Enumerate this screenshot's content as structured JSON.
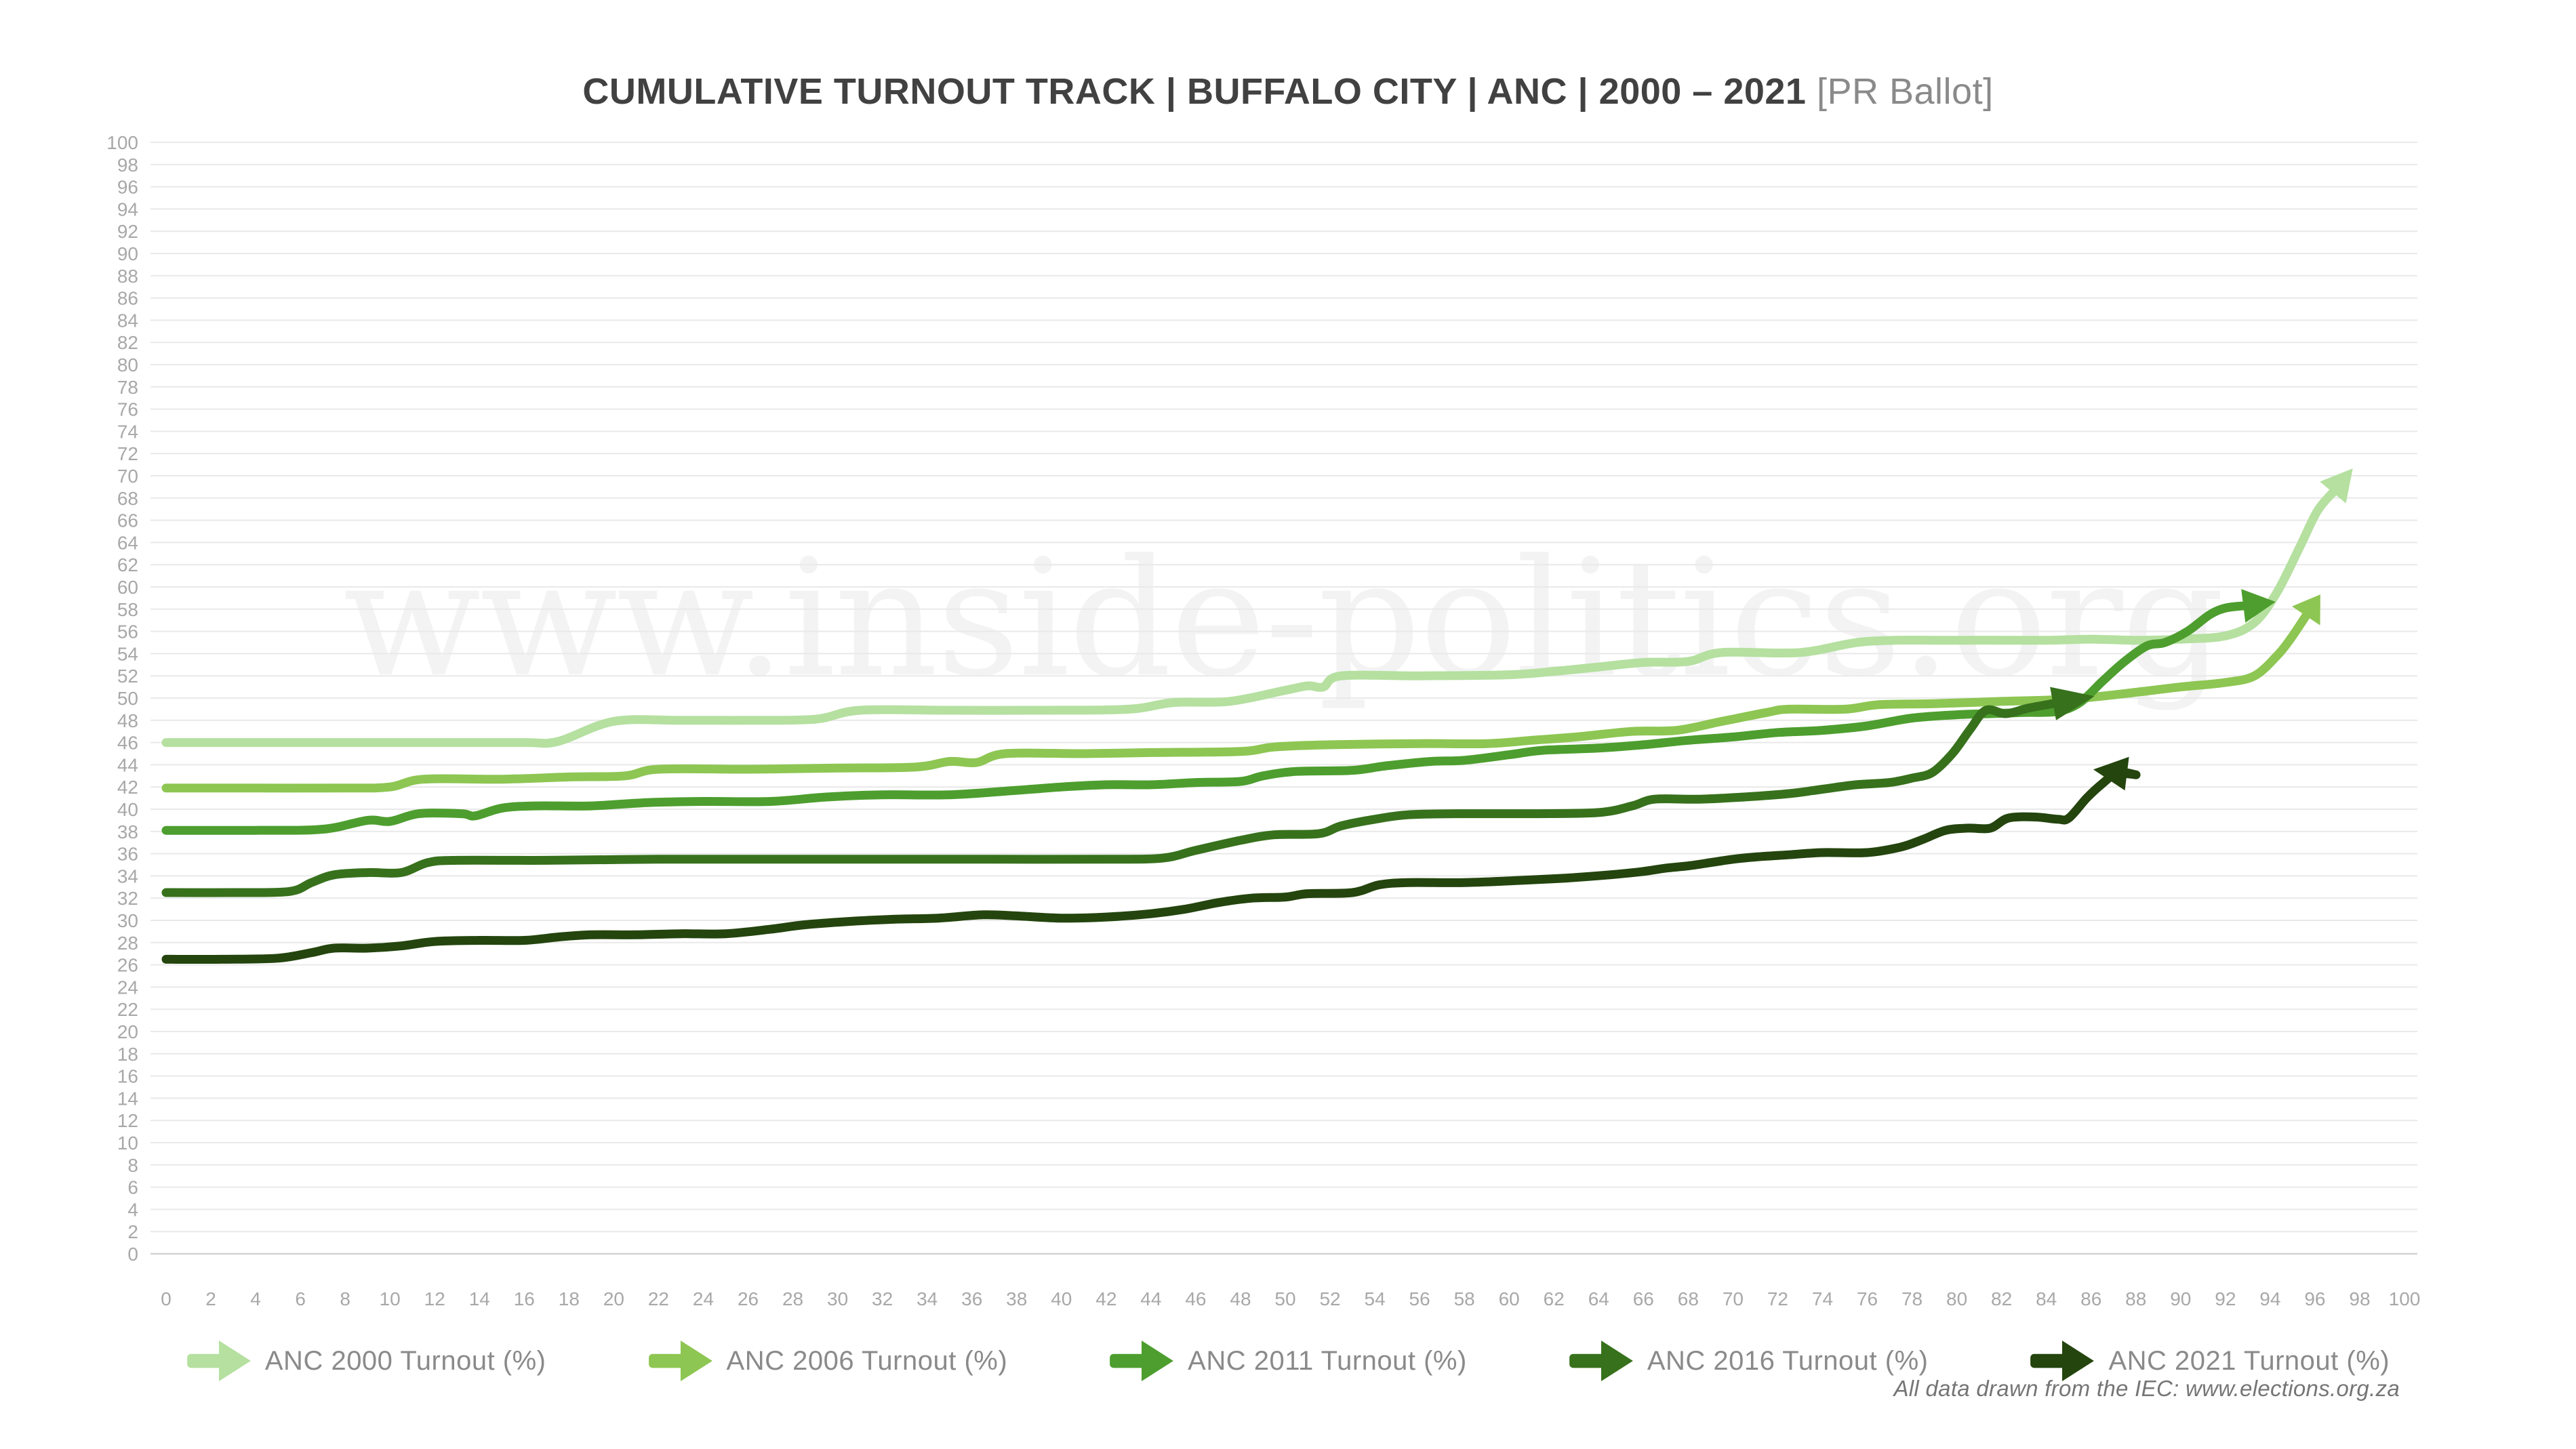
{
  "title": {
    "main": "CUMULATIVE TURNOUT TRACK | BUFFALO CITY | ANC | 2000 – 2021",
    "suffix": " [PR Ballot]"
  },
  "watermark": "www.inside-politics.org",
  "footer": "All data drawn from the IEC: www.elections.org.za",
  "legend": {
    "items": [
      {
        "label": "ANC 2000 Turnout (%)",
        "color": "#b5e0a0"
      },
      {
        "label": "ANC 2006 Turnout (%)",
        "color": "#8dc652"
      },
      {
        "label": "ANC 2011 Turnout (%)",
        "color": "#4d9e2e"
      },
      {
        "label": "ANC 2016 Turnout (%)",
        "color": "#37711c"
      },
      {
        "label": "ANC 2021 Turnout (%)",
        "color": "#24450e"
      }
    ]
  },
  "chart_data": {
    "type": "line",
    "title": "CUMULATIVE TURNOUT TRACK | BUFFALO CITY | ANC | 2000 – 2021 [PR Ballot]",
    "xlabel": "",
    "ylabel": "",
    "xlim": [
      0,
      100
    ],
    "ylim": [
      0,
      100
    ],
    "x_tick_step": 2,
    "y_tick_step": 2,
    "grid": "horizontal",
    "legend_position": "bottom",
    "axis_label_color": "#a8a8a8",
    "gridline_color": "#e9e9e9",
    "zeroline_color": "#d4d4d4",
    "watermark_color": "#f3f3f3",
    "series": [
      {
        "name": "ANC 2000 Turnout (%)",
        "color": "#b5e0a0",
        "arrow_len": 46,
        "points": [
          [
            0,
            46
          ],
          [
            4,
            46
          ],
          [
            8,
            46
          ],
          [
            12,
            46
          ],
          [
            16,
            46
          ],
          [
            17.5,
            46.1
          ],
          [
            20,
            47.9
          ],
          [
            23,
            48
          ],
          [
            26,
            48
          ],
          [
            29,
            48.1
          ],
          [
            31,
            48.9
          ],
          [
            35,
            48.9
          ],
          [
            39,
            48.9
          ],
          [
            43,
            49
          ],
          [
            45,
            49.6
          ],
          [
            47.5,
            49.7
          ],
          [
            50,
            50.7
          ],
          [
            51,
            51.1
          ],
          [
            51.7,
            51.0
          ],
          [
            52.5,
            52
          ],
          [
            56,
            52
          ],
          [
            60,
            52.1
          ],
          [
            62,
            52.4
          ],
          [
            64,
            52.8
          ],
          [
            66,
            53.2
          ],
          [
            68,
            53.3
          ],
          [
            69.5,
            54.1
          ],
          [
            73,
            54.1
          ],
          [
            76,
            55.1
          ],
          [
            80,
            55.2
          ],
          [
            84,
            55.2
          ],
          [
            86,
            55.3
          ],
          [
            88,
            55.2
          ],
          [
            90,
            55.3
          ],
          [
            92,
            55.6
          ],
          [
            93.3,
            56.8
          ],
          [
            94.3,
            59.5
          ],
          [
            95.3,
            63.5
          ],
          [
            96.1,
            66.8
          ],
          [
            96.8,
            68.5
          ]
        ]
      },
      {
        "name": "ANC 2006 Turnout (%)",
        "color": "#8dc652",
        "arrow_len": 38,
        "points": [
          [
            0,
            41.9
          ],
          [
            4,
            41.9
          ],
          [
            8,
            41.9
          ],
          [
            10,
            42
          ],
          [
            11.5,
            42.7
          ],
          [
            15,
            42.7
          ],
          [
            18,
            42.9
          ],
          [
            20.5,
            43
          ],
          [
            22,
            43.6
          ],
          [
            26,
            43.6
          ],
          [
            30,
            43.7
          ],
          [
            33.5,
            43.8
          ],
          [
            35,
            44.3
          ],
          [
            36.2,
            44.2
          ],
          [
            37.5,
            45
          ],
          [
            41,
            45
          ],
          [
            44,
            45.1
          ],
          [
            48,
            45.2
          ],
          [
            49.5,
            45.6
          ],
          [
            52,
            45.8
          ],
          [
            56,
            45.9
          ],
          [
            59,
            45.9
          ],
          [
            61,
            46.2
          ],
          [
            63,
            46.5
          ],
          [
            65.5,
            47
          ],
          [
            67.5,
            47.1
          ],
          [
            69.5,
            47.9
          ],
          [
            71.5,
            48.7
          ],
          [
            72.5,
            49
          ],
          [
            75,
            49
          ],
          [
            76.5,
            49.4
          ],
          [
            79,
            49.5
          ],
          [
            82,
            49.7
          ],
          [
            85,
            49.9
          ],
          [
            87.5,
            50.4
          ],
          [
            90,
            51
          ],
          [
            92,
            51.4
          ],
          [
            93.3,
            52
          ],
          [
            94.3,
            53.8
          ],
          [
            94.9,
            55.3
          ],
          [
            95.6,
            57.4
          ]
        ]
      },
      {
        "name": "ANC 2011 Turnout (%)",
        "color": "#4d9e2e",
        "arrow_len": 48,
        "points": [
          [
            0,
            38.1
          ],
          [
            4,
            38.1
          ],
          [
            7,
            38.2
          ],
          [
            9,
            39
          ],
          [
            10,
            38.9
          ],
          [
            11.3,
            39.6
          ],
          [
            13.2,
            39.6
          ],
          [
            13.8,
            39.4
          ],
          [
            15,
            40.1
          ],
          [
            16.5,
            40.3
          ],
          [
            19,
            40.3
          ],
          [
            21.5,
            40.6
          ],
          [
            24,
            40.7
          ],
          [
            27,
            40.7
          ],
          [
            29.5,
            41.1
          ],
          [
            32,
            41.3
          ],
          [
            35,
            41.3
          ],
          [
            38,
            41.7
          ],
          [
            40,
            42
          ],
          [
            42,
            42.2
          ],
          [
            44,
            42.2
          ],
          [
            46,
            42.4
          ],
          [
            48,
            42.5
          ],
          [
            49,
            43
          ],
          [
            50.5,
            43.4
          ],
          [
            53,
            43.5
          ],
          [
            54.5,
            43.9
          ],
          [
            56.5,
            44.3
          ],
          [
            58,
            44.4
          ],
          [
            60,
            44.9
          ],
          [
            61.5,
            45.3
          ],
          [
            64,
            45.5
          ],
          [
            66,
            45.8
          ],
          [
            68,
            46.2
          ],
          [
            70,
            46.5
          ],
          [
            72,
            46.9
          ],
          [
            74,
            47.1
          ],
          [
            76,
            47.5
          ],
          [
            78,
            48.2
          ],
          [
            80,
            48.5
          ],
          [
            81.5,
            48.6
          ],
          [
            83,
            48.7
          ],
          [
            84.5,
            48.8
          ],
          [
            85.5,
            49.6
          ],
          [
            86.5,
            51.5
          ],
          [
            87.5,
            53.3
          ],
          [
            88.5,
            54.7
          ],
          [
            89.3,
            55
          ],
          [
            90.3,
            56
          ],
          [
            91.3,
            57.5
          ],
          [
            92,
            58.1
          ],
          [
            92.8,
            58.3
          ]
        ]
      },
      {
        "name": "ANC 2016 Turnout (%)",
        "color": "#37711c",
        "arrow_len": 62,
        "points": [
          [
            0,
            32.5
          ],
          [
            3,
            32.5
          ],
          [
            5.5,
            32.6
          ],
          [
            6.5,
            33.4
          ],
          [
            7.5,
            34.1
          ],
          [
            9,
            34.3
          ],
          [
            10.5,
            34.3
          ],
          [
            11.7,
            35.2
          ],
          [
            13,
            35.4
          ],
          [
            17,
            35.4
          ],
          [
            22,
            35.5
          ],
          [
            27,
            35.5
          ],
          [
            32,
            35.5
          ],
          [
            37,
            35.5
          ],
          [
            42,
            35.5
          ],
          [
            44.5,
            35.6
          ],
          [
            46,
            36.3
          ],
          [
            48,
            37.2
          ],
          [
            49.5,
            37.7
          ],
          [
            51.5,
            37.8
          ],
          [
            52.5,
            38.5
          ],
          [
            54,
            39.1
          ],
          [
            55.5,
            39.5
          ],
          [
            58,
            39.6
          ],
          [
            61,
            39.6
          ],
          [
            64,
            39.7
          ],
          [
            65.5,
            40.3
          ],
          [
            66.5,
            40.9
          ],
          [
            68.5,
            40.9
          ],
          [
            70.5,
            41.1
          ],
          [
            72.5,
            41.4
          ],
          [
            74,
            41.8
          ],
          [
            75.5,
            42.2
          ],
          [
            77,
            42.4
          ],
          [
            78,
            42.8
          ],
          [
            78.9,
            43.3
          ],
          [
            79.8,
            45
          ],
          [
            80.6,
            47.2
          ],
          [
            81.3,
            48.9
          ],
          [
            82.2,
            48.6
          ],
          [
            83.2,
            49.1
          ],
          [
            84.3,
            49.5
          ]
        ]
      },
      {
        "name": "ANC 2021 Turnout (%)",
        "color": "#24450e",
        "arrow_len": 50,
        "points": [
          [
            0,
            26.5
          ],
          [
            2.5,
            26.5
          ],
          [
            5,
            26.6
          ],
          [
            6.5,
            27.1
          ],
          [
            7.5,
            27.5
          ],
          [
            9,
            27.5
          ],
          [
            10.5,
            27.7
          ],
          [
            12,
            28.1
          ],
          [
            14,
            28.2
          ],
          [
            16,
            28.2
          ],
          [
            17.5,
            28.5
          ],
          [
            19,
            28.7
          ],
          [
            21,
            28.7
          ],
          [
            23,
            28.8
          ],
          [
            25,
            28.8
          ],
          [
            27,
            29.2
          ],
          [
            28.5,
            29.6
          ],
          [
            30.5,
            29.9
          ],
          [
            32.5,
            30.1
          ],
          [
            34.5,
            30.2
          ],
          [
            36.5,
            30.5
          ],
          [
            38,
            30.4
          ],
          [
            40,
            30.2
          ],
          [
            42,
            30.3
          ],
          [
            44,
            30.6
          ],
          [
            45.5,
            31
          ],
          [
            47,
            31.6
          ],
          [
            48.5,
            32
          ],
          [
            50,
            32.1
          ],
          [
            51,
            32.4
          ],
          [
            53,
            32.5
          ],
          [
            54.2,
            33.2
          ],
          [
            55.5,
            33.4
          ],
          [
            58,
            33.4
          ],
          [
            60.5,
            33.6
          ],
          [
            62.5,
            33.8
          ],
          [
            64.5,
            34.1
          ],
          [
            66,
            34.4
          ],
          [
            67,
            34.7
          ],
          [
            68,
            34.9
          ],
          [
            69,
            35.2
          ],
          [
            70,
            35.5
          ],
          [
            71,
            35.7
          ],
          [
            72.5,
            35.9
          ],
          [
            74,
            36.1
          ],
          [
            76,
            36.1
          ],
          [
            77.5,
            36.6
          ],
          [
            78.5,
            37.3
          ],
          [
            79.5,
            38.1
          ],
          [
            80.5,
            38.3
          ],
          [
            81.5,
            38.3
          ],
          [
            82.3,
            39.2
          ],
          [
            83.5,
            39.3
          ],
          [
            84.5,
            39.1
          ],
          [
            85,
            39.2
          ],
          [
            85.8,
            41
          ],
          [
            86.5,
            42.3
          ],
          [
            87.2,
            43.3
          ],
          [
            88,
            43.1
          ],
          [
            87.6,
            43.2
          ]
        ]
      }
    ]
  }
}
